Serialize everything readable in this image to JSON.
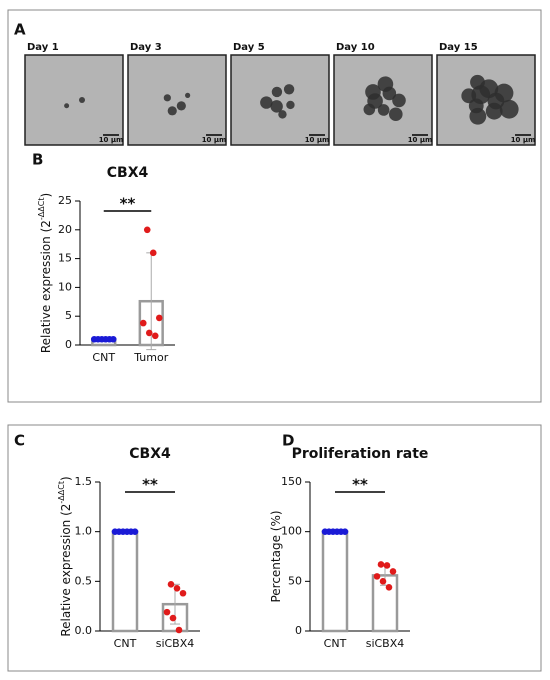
{
  "panel_labels": [
    "A",
    "B",
    "C",
    "D"
  ],
  "images": [
    {
      "label": "Day 1",
      "scale": "10 µm"
    },
    {
      "label": "Day 3",
      "scale": "10 µm"
    },
    {
      "label": "Day 5",
      "scale": "10 µm"
    },
    {
      "label": "Day 10",
      "scale": "10 µm"
    },
    {
      "label": "Day 15",
      "scale": "10 µm"
    }
  ],
  "chart_data": [
    {
      "type": "bar",
      "title": "CBX4",
      "ylabel": [
        "Relative expression (2",
        "-ΔΔCt",
        ")"
      ],
      "categories": [
        "CNT",
        "Tumor"
      ],
      "values": [
        1,
        7.6
      ],
      "errors": [
        0,
        8.4
      ],
      "points": [
        [
          1,
          1,
          1,
          1,
          1,
          1
        ],
        [
          20,
          16,
          4.7,
          3.8,
          2.1,
          1.6
        ]
      ],
      "point_colors": [
        "#1a1ad6",
        "#e01b1b"
      ],
      "bar_color": "#9a9a9a",
      "significance": "**",
      "ylim": [
        0,
        25
      ],
      "yticks": [
        0,
        5,
        10,
        15,
        20,
        25
      ]
    },
    {
      "type": "bar",
      "title": "CBX4",
      "ylabel": [
        "Relative expression (2",
        "-ΔΔCt",
        ")"
      ],
      "categories": [
        "CNT",
        "siCBX4"
      ],
      "values": [
        1,
        0.27
      ],
      "errors": [
        0,
        0.2
      ],
      "points": [
        [
          1,
          1,
          1,
          1,
          1,
          1
        ],
        [
          0.47,
          0.43,
          0.38,
          0.19,
          0.13,
          0.01
        ]
      ],
      "point_colors": [
        "#1a1ad6",
        "#e01b1b"
      ],
      "bar_color": "#9a9a9a",
      "significance": "**",
      "ylim": [
        0,
        1.5
      ],
      "yticks": [
        {
          "value": 0,
          "label": "0.0"
        },
        0.5,
        {
          "value": 1,
          "label": "1.0"
        },
        1.5
      ]
    },
    {
      "type": "bar",
      "title": "Proliferation rate",
      "ylabel": [
        "Percentage (%)"
      ],
      "categories": [
        "CNT",
        "siCBX4"
      ],
      "values": [
        100,
        56
      ],
      "errors": [
        0,
        10
      ],
      "points": [
        [
          100,
          100,
          100,
          100,
          100,
          100
        ],
        [
          67,
          66,
          60,
          55,
          50,
          44
        ]
      ],
      "point_colors": [
        "#1a1ad6",
        "#e01b1b"
      ],
      "bar_color": "#9a9a9a",
      "significance": "**",
      "ylim": [
        0,
        150
      ],
      "yticks": [
        0,
        50,
        100,
        150
      ]
    }
  ]
}
